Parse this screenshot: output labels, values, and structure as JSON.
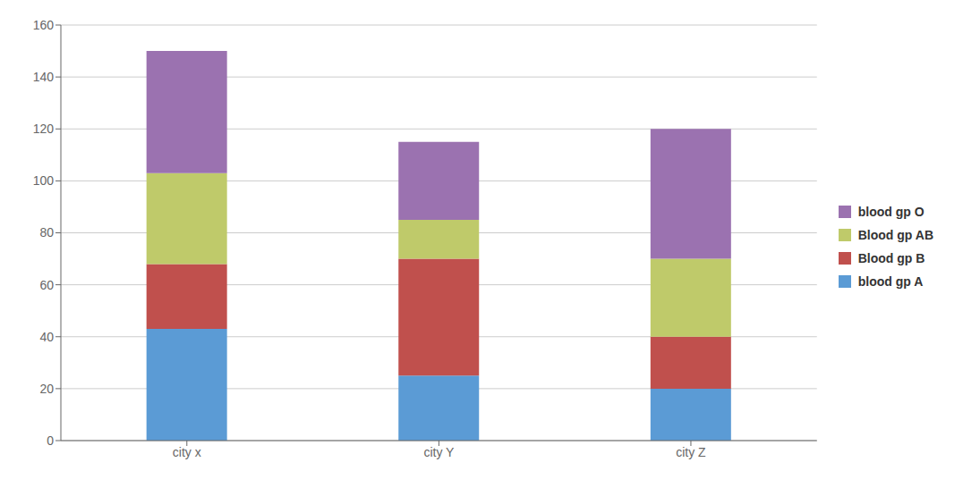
{
  "chart_data": {
    "type": "bar",
    "stacked": true,
    "categories": [
      "city x",
      "city Y",
      "city Z"
    ],
    "series": [
      {
        "name": "blood gp A",
        "color": "#5B9BD5",
        "values": [
          43,
          25,
          20
        ]
      },
      {
        "name": "Blood gp B",
        "color": "#C0504D",
        "values": [
          25,
          45,
          20
        ]
      },
      {
        "name": "Blood gp AB",
        "color": "#BFCA6A",
        "values": [
          35,
          15,
          30
        ]
      },
      {
        "name": "blood gp O",
        "color": "#9B72B0",
        "values": [
          47,
          30,
          50
        ]
      }
    ],
    "ylim": [
      0,
      160
    ],
    "yticks": [
      0,
      20,
      40,
      60,
      80,
      100,
      120,
      140,
      160
    ],
    "grid": true,
    "legend": "right"
  }
}
